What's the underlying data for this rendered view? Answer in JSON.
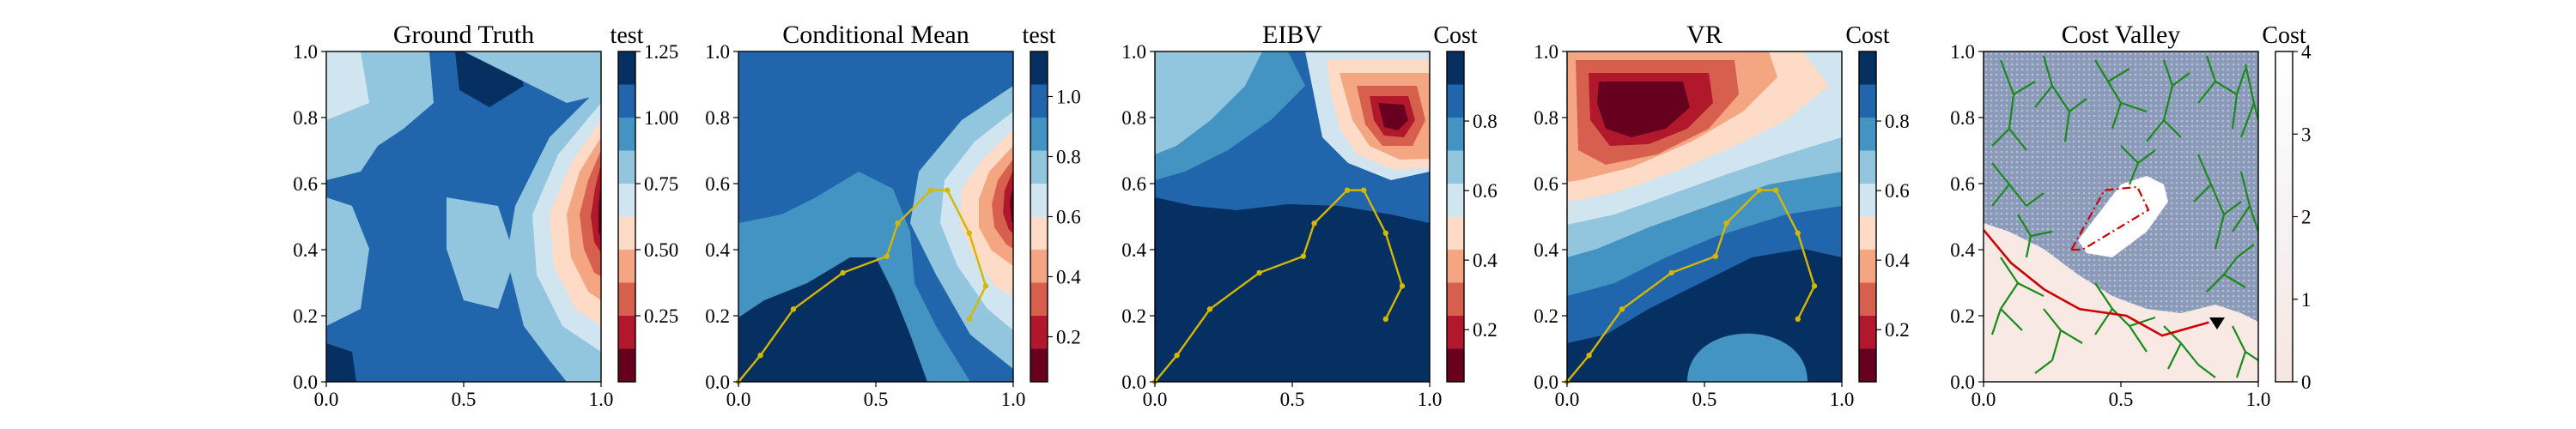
{
  "colors": {
    "rdbu": [
      "#67001f",
      "#b2182b",
      "#d6604d",
      "#f4a582",
      "#fddbc7",
      "#d1e5f0",
      "#92c5de",
      "#4393c3",
      "#2166ac",
      "#053061"
    ],
    "path": "#d4b800",
    "tree": "#1a8a1a",
    "route": "#cc0000",
    "cost_valley_base": "#8a9ab8",
    "cost_valley_low": "#f9e9e4"
  },
  "chart_data": [
    {
      "type": "heatmap",
      "title": "Ground Truth",
      "colorbar_label": "test",
      "x_ticks": [
        "0.0",
        "0.5",
        "1.0"
      ],
      "y_ticks": [
        "0.0",
        "0.2",
        "0.4",
        "0.6",
        "0.8",
        "1.0"
      ],
      "colorbar_ticks": [
        "0.25",
        "0.50",
        "0.75",
        "1.00",
        "1.25"
      ],
      "colorbar_range": [
        0.0,
        1.25
      ],
      "xlim": [
        0,
        1
      ],
      "ylim": [
        0,
        1
      ]
    },
    {
      "type": "heatmap",
      "title": "Conditional Mean",
      "colorbar_label": "test",
      "x_ticks": [
        "0.0",
        "0.5",
        "1.0"
      ],
      "y_ticks": [
        "0.0",
        "0.2",
        "0.4",
        "0.6",
        "0.8",
        "1.0"
      ],
      "colorbar_ticks": [
        "0.2",
        "0.4",
        "0.6",
        "0.8",
        "1.0"
      ],
      "colorbar_range": [
        0.05,
        1.15
      ],
      "xlim": [
        0,
        1
      ],
      "ylim": [
        0,
        1
      ],
      "path": {
        "x": [
          0.0,
          0.08,
          0.2,
          0.38,
          0.54,
          0.58,
          0.7,
          0.76,
          0.84,
          0.9,
          0.84
        ],
        "y": [
          0.0,
          0.08,
          0.22,
          0.33,
          0.38,
          0.48,
          0.58,
          0.58,
          0.45,
          0.29,
          0.19
        ]
      }
    },
    {
      "type": "heatmap",
      "title": "EIBV",
      "colorbar_label": "Cost",
      "x_ticks": [
        "0.0",
        "0.5",
        "1.0"
      ],
      "y_ticks": [
        "0.0",
        "0.2",
        "0.4",
        "0.6",
        "0.8",
        "1.0"
      ],
      "colorbar_ticks": [
        "0.2",
        "0.4",
        "0.6",
        "0.8"
      ],
      "colorbar_range": [
        0.05,
        1.0
      ],
      "xlim": [
        0,
        1
      ],
      "ylim": [
        0,
        1
      ],
      "path": {
        "x": [
          0.0,
          0.08,
          0.2,
          0.38,
          0.54,
          0.58,
          0.7,
          0.76,
          0.84,
          0.9,
          0.84
        ],
        "y": [
          0.0,
          0.08,
          0.22,
          0.33,
          0.38,
          0.48,
          0.58,
          0.58,
          0.45,
          0.29,
          0.19
        ]
      }
    },
    {
      "type": "heatmap",
      "title": "VR",
      "colorbar_label": "Cost",
      "x_ticks": [
        "0.0",
        "0.5",
        "1.0"
      ],
      "y_ticks": [
        "0.0",
        "0.2",
        "0.4",
        "0.6",
        "0.8",
        "1.0"
      ],
      "colorbar_ticks": [
        "0.2",
        "0.4",
        "0.6",
        "0.8"
      ],
      "colorbar_range": [
        0.05,
        1.0
      ],
      "xlim": [
        0,
        1
      ],
      "ylim": [
        0,
        1
      ],
      "path": {
        "x": [
          0.0,
          0.08,
          0.2,
          0.38,
          0.54,
          0.58,
          0.7,
          0.76,
          0.84,
          0.9,
          0.84
        ],
        "y": [
          0.0,
          0.08,
          0.22,
          0.33,
          0.38,
          0.48,
          0.58,
          0.58,
          0.45,
          0.29,
          0.19
        ]
      }
    },
    {
      "type": "heatmap",
      "title": "Cost Valley",
      "colorbar_label": "Cost",
      "x_ticks": [
        "0.0",
        "0.5",
        "1.0"
      ],
      "y_ticks": [
        "0.0",
        "0.2",
        "0.4",
        "0.6",
        "0.8",
        "1.0"
      ],
      "colorbar_ticks": [
        "0",
        "1",
        "2",
        "3",
        "4"
      ],
      "colorbar_range": [
        0,
        4
      ],
      "xlim": [
        0,
        1
      ],
      "ylim": [
        0,
        1
      ],
      "polygon": {
        "x": [
          0.32,
          0.44,
          0.56,
          0.6,
          0.36
        ],
        "y": [
          0.4,
          0.58,
          0.59,
          0.52,
          0.4
        ]
      },
      "route": {
        "x": [
          0.0,
          0.1,
          0.22,
          0.35,
          0.52,
          0.65,
          0.82
        ],
        "y": [
          0.46,
          0.36,
          0.28,
          0.22,
          0.2,
          0.14,
          0.18
        ]
      }
    }
  ]
}
